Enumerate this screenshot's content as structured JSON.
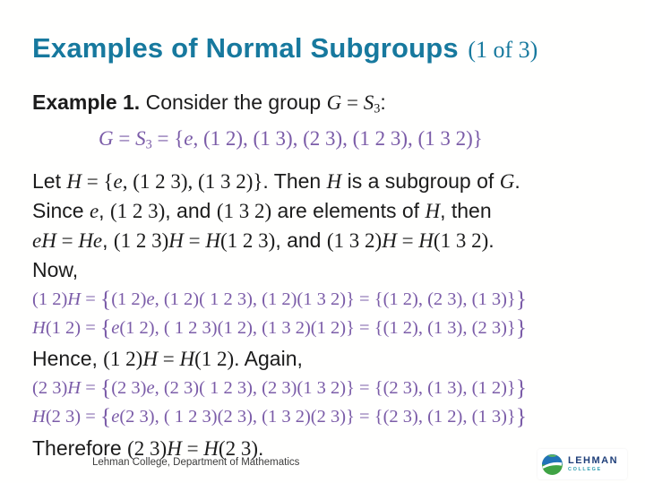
{
  "slide": {
    "title": "Examples of Normal Subgroups",
    "title_suffix": "(1 of 3)",
    "footer": "Lehman College, Department of Mathematics",
    "logo": {
      "name": "LEHMAN",
      "sub": "COLLEGE",
      "icon": "globe-icon"
    }
  },
  "colors": {
    "title": "#17799e",
    "math_purple": "#7b5ca8",
    "body_text": "#1c1c1c",
    "footer_text": "#3d3d3d",
    "logo_navy": "#1f3f7a",
    "logo_teal": "#2e9db0",
    "logo_blue": "#2173b8",
    "logo_green": "#3fa345"
  },
  "content": {
    "lines": [
      {
        "cls": "",
        "seg": [
          {
            "s": "b",
            "t": "Example 1."
          },
          {
            "s": "p",
            "t": " Consider the group "
          },
          {
            "s": "i",
            "t": "G"
          },
          {
            "s": "m",
            "t": " = "
          },
          {
            "s": "i",
            "t": "S"
          },
          {
            "s": "s",
            "t": "3"
          },
          {
            "s": "p",
            "t": ":"
          }
        ]
      },
      {
        "cls": "purple indent",
        "seg": [
          {
            "s": "i",
            "t": "G"
          },
          {
            "s": "m",
            "t": " = "
          },
          {
            "s": "i",
            "t": "S"
          },
          {
            "s": "s",
            "t": "3"
          },
          {
            "s": "m",
            "t": " = {"
          },
          {
            "s": "i",
            "t": "e"
          },
          {
            "s": "m",
            "t": ", (1 2), (1 3), (2 3), (1 2 3), (1 3 2)}"
          }
        ]
      },
      {
        "cls": "",
        "seg": [
          {
            "s": "p",
            "t": "Let "
          },
          {
            "s": "i",
            "t": "H"
          },
          {
            "s": "m",
            "t": " = {"
          },
          {
            "s": "i",
            "t": "e"
          },
          {
            "s": "m",
            "t": ", (1 2 3), (1 3 2)}"
          },
          {
            "s": "p",
            "t": ". Then "
          },
          {
            "s": "i",
            "t": "H"
          },
          {
            "s": "p",
            "t": " is a subgroup of "
          },
          {
            "s": "i",
            "t": "G"
          },
          {
            "s": "p",
            "t": "."
          }
        ]
      },
      {
        "cls": "",
        "seg": [
          {
            "s": "p",
            "t": "Since "
          },
          {
            "s": "i",
            "t": "e"
          },
          {
            "s": "p",
            "t": ", "
          },
          {
            "s": "m",
            "t": "(1 2 3)"
          },
          {
            "s": "p",
            "t": ", and "
          },
          {
            "s": "m",
            "t": "(1 3 2)"
          },
          {
            "s": "p",
            "t": " are elements of "
          },
          {
            "s": "i",
            "t": "H"
          },
          {
            "s": "p",
            "t": ", then"
          }
        ]
      },
      {
        "cls": "",
        "seg": [
          {
            "s": "i",
            "t": "eH"
          },
          {
            "s": "m",
            "t": " = "
          },
          {
            "s": "i",
            "t": "He"
          },
          {
            "s": "p",
            "t": ", "
          },
          {
            "s": "m",
            "t": "(1 2 3)"
          },
          {
            "s": "i",
            "t": "H"
          },
          {
            "s": "m",
            "t": " = "
          },
          {
            "s": "i",
            "t": "H"
          },
          {
            "s": "m",
            "t": "(1 2 3)"
          },
          {
            "s": "p",
            "t": ", and "
          },
          {
            "s": "m",
            "t": "(1 3 2)"
          },
          {
            "s": "i",
            "t": "H"
          },
          {
            "s": "m",
            "t": " = "
          },
          {
            "s": "i",
            "t": "H"
          },
          {
            "s": "m",
            "t": "(1 3 2)"
          },
          {
            "s": "p",
            "t": "."
          }
        ]
      },
      {
        "cls": "",
        "seg": [
          {
            "s": "p",
            "t": "Now,"
          }
        ]
      },
      {
        "cls": "purple formula",
        "seg": [
          {
            "s": "m",
            "t": "(1 2)"
          },
          {
            "s": "i",
            "t": "H"
          },
          {
            "s": "m",
            "t": " = "
          },
          {
            "s": "g",
            "t": "{"
          },
          {
            "s": "m",
            "t": "(1 2)"
          },
          {
            "s": "i",
            "t": "e"
          },
          {
            "s": "m",
            "t": ", (1 2)( 1 2 3), (1 2)(1 3 2)} = {(1 2), (2 3), (1 3)}"
          },
          {
            "s": "g",
            "t": "}"
          }
        ]
      },
      {
        "cls": "purple formula",
        "seg": [
          {
            "s": "i",
            "t": "H"
          },
          {
            "s": "m",
            "t": "(1 2) = "
          },
          {
            "s": "g",
            "t": "{"
          },
          {
            "s": "i",
            "t": "e"
          },
          {
            "s": "m",
            "t": "(1 2), ( 1 2 3)(1 2), (1 3 2)(1 2)} = {(1 2), (1 3), (2 3)}"
          },
          {
            "s": "g",
            "t": "}"
          }
        ]
      },
      {
        "cls": "",
        "seg": [
          {
            "s": "p",
            "t": "Hence, "
          },
          {
            "s": "m",
            "t": "(1 2)"
          },
          {
            "s": "i",
            "t": "H"
          },
          {
            "s": "m",
            "t": " = "
          },
          {
            "s": "i",
            "t": "H"
          },
          {
            "s": "m",
            "t": "(1 2)"
          },
          {
            "s": "p",
            "t": ". Again,"
          }
        ]
      },
      {
        "cls": "purple formula",
        "seg": [
          {
            "s": "m",
            "t": "(2 3)"
          },
          {
            "s": "i",
            "t": "H"
          },
          {
            "s": "m",
            "t": " = "
          },
          {
            "s": "g",
            "t": "{"
          },
          {
            "s": "m",
            "t": "(2 3)"
          },
          {
            "s": "i",
            "t": "e"
          },
          {
            "s": "m",
            "t": ", (2 3)( 1 2 3), (2 3)(1 3 2)} = {(2 3), (1 3), (1 2)}"
          },
          {
            "s": "g",
            "t": "}"
          }
        ]
      },
      {
        "cls": "purple formula",
        "seg": [
          {
            "s": "i",
            "t": "H"
          },
          {
            "s": "m",
            "t": "(2 3) = "
          },
          {
            "s": "g",
            "t": "{"
          },
          {
            "s": "i",
            "t": "e"
          },
          {
            "s": "m",
            "t": "(2 3), ( 1 2 3)(2 3), (1 3 2)(2 3)} = {(2 3), (1 2), (1 3)}"
          },
          {
            "s": "g",
            "t": "}"
          }
        ]
      },
      {
        "cls": "",
        "seg": [
          {
            "s": "p",
            "t": "Therefore "
          },
          {
            "s": "m",
            "t": "(2 3)"
          },
          {
            "s": "i",
            "t": "H"
          },
          {
            "s": "m",
            "t": " = "
          },
          {
            "s": "i",
            "t": "H"
          },
          {
            "s": "m",
            "t": "(2 3)"
          },
          {
            "s": "p",
            "t": "."
          }
        ]
      }
    ]
  }
}
